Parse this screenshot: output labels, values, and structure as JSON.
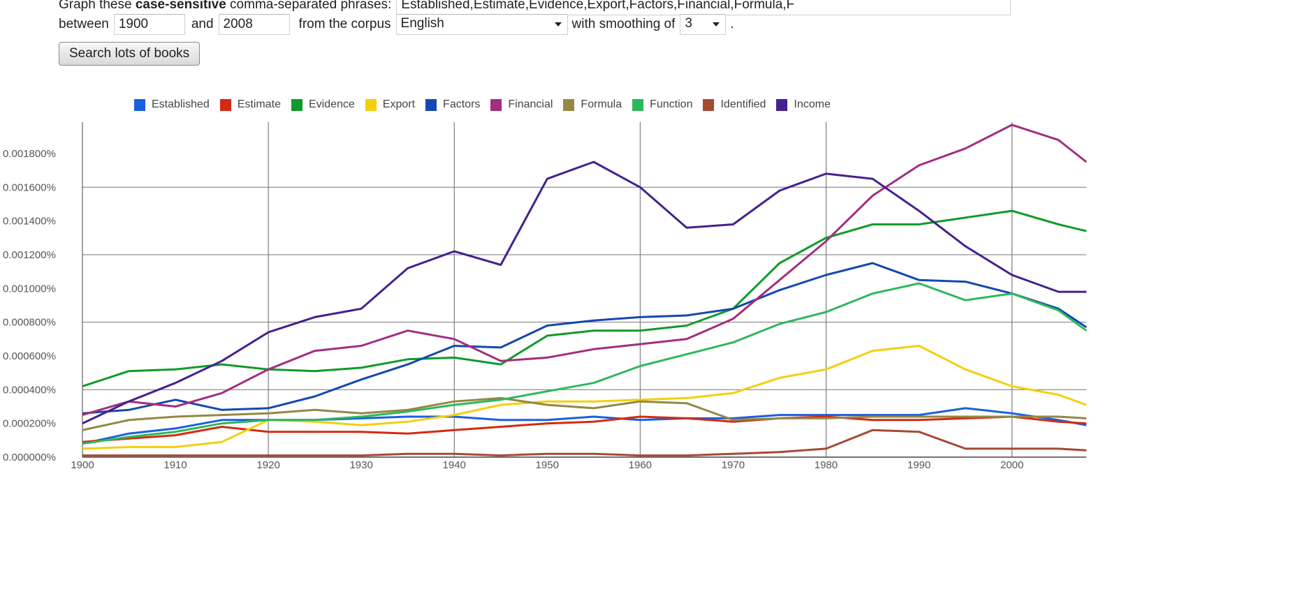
{
  "form": {
    "intro_prefix": "Graph these ",
    "intro_bold": "case-sensitive",
    "intro_suffix": " comma-separated phrases:",
    "phrases_value": "Established,Estimate,Evidence,Export,Factors,Financial,Formula,F",
    "between_label": "between",
    "start_year": "1900",
    "and_label": "and",
    "end_year": "2008",
    "corpus_label": "from the corpus",
    "corpus_value": "English",
    "smoothing_label": "with smoothing of",
    "smoothing_value": "3",
    "period": ".",
    "search_button": "Search lots of books"
  },
  "legend": [
    {
      "label": "Established",
      "color": "#1a5fe0"
    },
    {
      "label": "Estimate",
      "color": "#d42a12"
    },
    {
      "label": "Evidence",
      "color": "#0f9a2a"
    },
    {
      "label": "Export",
      "color": "#f4cf0c"
    },
    {
      "label": "Factors",
      "color": "#1448b0"
    },
    {
      "label": "Financial",
      "color": "#a22e7e"
    },
    {
      "label": "Formula",
      "color": "#958745"
    },
    {
      "label": "Function",
      "color": "#2cb85a"
    },
    {
      "label": "Identified",
      "color": "#a64a32"
    },
    {
      "label": "Income",
      "color": "#46208f"
    }
  ],
  "axis": {
    "y_ticks": [
      "0.000000%",
      "0.000200%",
      "0.000400%",
      "0.000600%",
      "0.000800%",
      "0.001000%",
      "0.001200%",
      "0.001400%",
      "0.001600%",
      "0.001800%"
    ],
    "x_ticks": [
      "1900",
      "1910",
      "1920",
      "1930",
      "1940",
      "1950",
      "1960",
      "1970",
      "1980",
      "1990",
      "2000"
    ]
  },
  "chart_data": {
    "type": "line",
    "title": "",
    "xlabel": "",
    "ylabel": "",
    "xlim": [
      1900,
      2008
    ],
    "ylim": [
      0,
      0.0019
    ],
    "y_unit": "%",
    "grid": true,
    "legend_position": "top",
    "x": [
      1900,
      1905,
      1910,
      1915,
      1920,
      1925,
      1930,
      1935,
      1940,
      1945,
      1950,
      1955,
      1960,
      1965,
      1970,
      1975,
      1980,
      1985,
      1990,
      1995,
      2000,
      2005,
      2008
    ],
    "series": [
      {
        "name": "Established",
        "color": "#1a5fe0",
        "values": [
          8e-05,
          0.00014,
          0.00017,
          0.00022,
          0.00022,
          0.00022,
          0.00023,
          0.00024,
          0.00024,
          0.00022,
          0.00022,
          0.00024,
          0.00022,
          0.00023,
          0.00023,
          0.00025,
          0.00025,
          0.00025,
          0.00025,
          0.00029,
          0.00026,
          0.00022,
          0.00019
        ]
      },
      {
        "name": "Estimate",
        "color": "#d42a12",
        "values": [
          9e-05,
          0.00011,
          0.00013,
          0.00018,
          0.00015,
          0.00015,
          0.00015,
          0.00014,
          0.00016,
          0.00018,
          0.0002,
          0.00021,
          0.00024,
          0.00023,
          0.00021,
          0.00023,
          0.00024,
          0.00022,
          0.00022,
          0.00023,
          0.00024,
          0.00021,
          0.0002
        ]
      },
      {
        "name": "Evidence",
        "color": "#0f9a2a",
        "values": [
          0.00042,
          0.00051,
          0.00052,
          0.00055,
          0.00052,
          0.00051,
          0.00053,
          0.00058,
          0.00059,
          0.00055,
          0.00072,
          0.00075,
          0.00075,
          0.00078,
          0.00088,
          0.00115,
          0.0013,
          0.00138,
          0.00138,
          0.00142,
          0.00146,
          0.00138,
          0.00134
        ]
      },
      {
        "name": "Export",
        "color": "#f4cf0c",
        "values": [
          5e-05,
          6e-05,
          6e-05,
          9e-05,
          0.00022,
          0.00021,
          0.00019,
          0.00021,
          0.00025,
          0.00031,
          0.00033,
          0.00033,
          0.00034,
          0.00035,
          0.00038,
          0.00047,
          0.00052,
          0.00063,
          0.00066,
          0.00052,
          0.00042,
          0.00037,
          0.00031
        ]
      },
      {
        "name": "Factors",
        "color": "#1448b0",
        "values": [
          0.00026,
          0.00028,
          0.00034,
          0.00028,
          0.00029,
          0.00036,
          0.00046,
          0.00055,
          0.00066,
          0.00065,
          0.00078,
          0.00081,
          0.00083,
          0.00084,
          0.00088,
          0.00099,
          0.00108,
          0.00115,
          0.00105,
          0.00104,
          0.00097,
          0.00088,
          0.00077
        ]
      },
      {
        "name": "Financial",
        "color": "#a22e7e",
        "values": [
          0.00025,
          0.00033,
          0.0003,
          0.00038,
          0.00052,
          0.00063,
          0.00066,
          0.00075,
          0.0007,
          0.00057,
          0.00059,
          0.00064,
          0.00067,
          0.0007,
          0.00082,
          0.00105,
          0.00128,
          0.00155,
          0.00173,
          0.00183,
          0.00197,
          0.00188,
          0.00175
        ]
      },
      {
        "name": "Formula",
        "color": "#958745",
        "values": [
          0.00016,
          0.00022,
          0.00024,
          0.00025,
          0.00026,
          0.00028,
          0.00026,
          0.00028,
          0.00033,
          0.00035,
          0.00031,
          0.00029,
          0.00033,
          0.00032,
          0.00022,
          0.00023,
          0.00023,
          0.00024,
          0.00024,
          0.00024,
          0.00024,
          0.00024,
          0.00023
        ]
      },
      {
        "name": "Function",
        "color": "#2cb85a",
        "values": [
          8e-05,
          0.00012,
          0.00015,
          0.0002,
          0.00022,
          0.00022,
          0.00024,
          0.00027,
          0.00031,
          0.00034,
          0.00039,
          0.00044,
          0.00054,
          0.00061,
          0.00068,
          0.00079,
          0.00086,
          0.00097,
          0.00103,
          0.00093,
          0.00097,
          0.00087,
          0.00075
        ]
      },
      {
        "name": "Identified",
        "color": "#a64a32",
        "values": [
          1e-05,
          1e-05,
          1e-05,
          1e-05,
          1e-05,
          1e-05,
          1e-05,
          2e-05,
          2e-05,
          1e-05,
          2e-05,
          2e-05,
          1e-05,
          1e-05,
          2e-05,
          3e-05,
          5e-05,
          0.00016,
          0.00015,
          5e-05,
          5e-05,
          5e-05,
          4e-05
        ]
      },
      {
        "name": "Income",
        "color": "#46208f",
        "values": [
          0.0002,
          0.00033,
          0.00044,
          0.00057,
          0.00074,
          0.00083,
          0.00088,
          0.00112,
          0.00122,
          0.00114,
          0.00165,
          0.00175,
          0.0016,
          0.00136,
          0.00138,
          0.00158,
          0.00168,
          0.00165,
          0.00146,
          0.00125,
          0.00108,
          0.00098,
          0.00098
        ]
      }
    ]
  }
}
